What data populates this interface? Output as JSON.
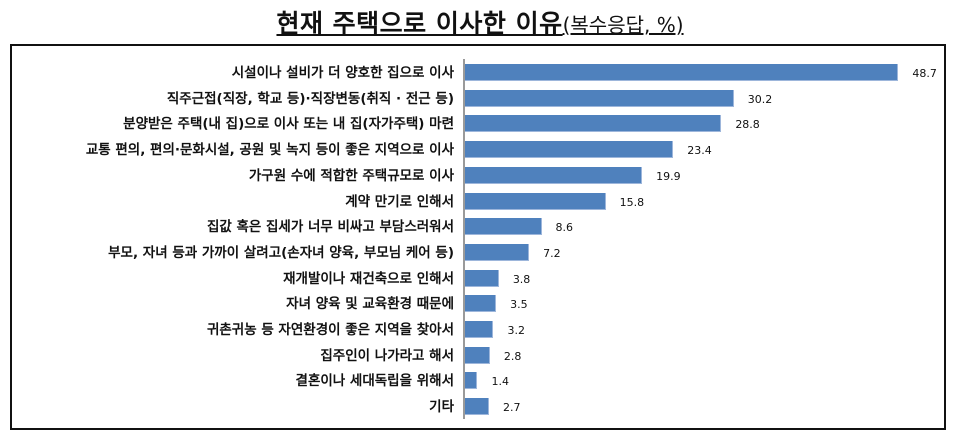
{
  "title": {
    "main": "현재 주택으로 이사한 이유",
    "sub": "(복수응답, %)"
  },
  "colors": {
    "bar": "#4f81bd",
    "axis": "#9a9a9a",
    "frame": "#111111"
  },
  "chart_data": {
    "type": "bar",
    "orientation": "horizontal",
    "title": "현재 주택으로 이사한 이유(복수응답, %)",
    "xlabel": "",
    "ylabel": "",
    "unit": "%",
    "grid": false,
    "legend": null,
    "categories": [
      "시설이나 설비가 더 양호한 집으로 이사",
      "직주근접(직장, 학교 등)·직장변동(취직 · 전근 등)",
      "분양받은 주택(내 집)으로 이사 또는 내 집(자가주택) 마련",
      "교통 편의, 편의·문화시설, 공원 및 녹지 등이 좋은 지역으로 이사",
      "가구원 수에 적합한 주택규모로 이사",
      "계약 만기로 인해서",
      "집값 혹은 집세가 너무 비싸고 부담스러워서",
      "부모, 자녀 등과 가까이 살려고(손자녀 양육, 부모님 케어 등)",
      "재개발이나 재건축으로 인해서",
      "자녀 양육 및 교육환경 때문에",
      "귀촌귀농 등 자연환경이 좋은 지역을 찾아서",
      "집주인이 나가라고 해서",
      "결혼이나 세대독립을 위해서",
      "기타"
    ],
    "values": [
      48.7,
      30.2,
      28.8,
      23.4,
      19.9,
      15.8,
      8.6,
      7.2,
      3.8,
      3.5,
      3.2,
      2.8,
      1.4,
      2.7
    ],
    "value_labels": [
      "48.7",
      "30.2",
      "28.8",
      "23.4",
      "19.9",
      "15.8",
      "8.6",
      "7.2",
      "3.8",
      "3.5",
      "3.2",
      "2.8",
      "1.4",
      "2.7"
    ],
    "xlim": [
      0,
      50
    ]
  }
}
